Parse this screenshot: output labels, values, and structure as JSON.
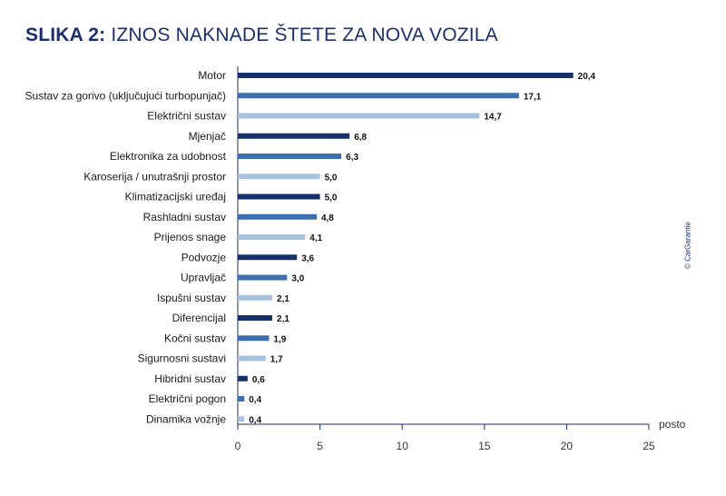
{
  "title": {
    "prefix": "SLIKA 2:",
    "main": "IZNOS NAKNADE ŠTETE ZA NOVA VOZILA"
  },
  "copyright": "© CarGarantie",
  "colors": {
    "dark": "#16306b",
    "medium": "#3c6fb0",
    "light": "#a7c2df",
    "axis": "#1a2f6b"
  },
  "chart_data": {
    "type": "bar",
    "orientation": "horizontal",
    "categories": [
      "Motor",
      "Sustav za gorivo (uključujući turbopunjač)",
      "Električni sustav",
      "Mjenjač",
      "Elektronika za udobnost",
      "Karoserija / unutrašnji prostor",
      "Klimatizacijski uređaj",
      "Rashladni sustav",
      "Prijenos snage",
      "Podvozje",
      "Upravljač",
      "Ispušni sustav",
      "Diferencijal",
      "Kočni sustav",
      "Sigurnosni sustavi",
      "Hibridni sustav",
      "Električni pogon",
      "Dinamika vožnje"
    ],
    "values": [
      20.4,
      17.1,
      14.7,
      6.8,
      6.3,
      5.0,
      5.0,
      4.8,
      4.1,
      3.6,
      3.0,
      2.1,
      2.1,
      1.9,
      1.7,
      0.6,
      0.4,
      0.4
    ],
    "value_labels": [
      "20,4",
      "17,1",
      "14,7",
      "6,8",
      "6,3",
      "5,0",
      "5,0",
      "4,8",
      "4,1",
      "3,6",
      "3,0",
      "2,1",
      "2,1",
      "1,9",
      "1,7",
      "0,6",
      "0,4",
      "0,4"
    ],
    "color_pattern": [
      "dark",
      "medium",
      "light"
    ],
    "xlim": [
      0,
      25
    ],
    "xticks": [
      0,
      5,
      10,
      15,
      20,
      25
    ],
    "xtick_labels": [
      "0",
      "5",
      "10",
      "15",
      "20",
      "25"
    ],
    "xlabel": "posto",
    "ylabel": "",
    "grid": false,
    "legend": "none"
  }
}
